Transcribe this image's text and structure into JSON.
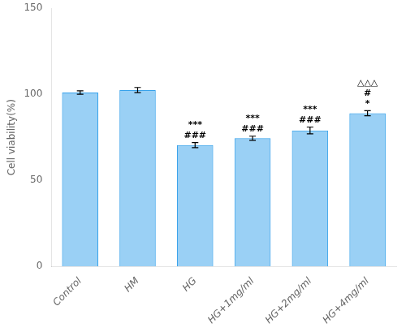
{
  "chart_data": {
    "type": "bar",
    "categories": [
      "Control",
      "HM",
      "HG",
      "HG+1mg/ml",
      "HG+2mg/ml",
      "HG+4mg/ml"
    ],
    "values": [
      101.0,
      102.5,
      70.5,
      74.5,
      79.0,
      89.0
    ],
    "errors": [
      1.0,
      1.5,
      1.5,
      1.2,
      2.0,
      1.5
    ],
    "ylabel": "Cell viability(%)",
    "ylim": [
      0,
      150
    ],
    "yticks": [
      0,
      50,
      100,
      150
    ],
    "grid": false,
    "annotations": [
      {
        "category": "HG",
        "texts": [
          "###",
          "***"
        ]
      },
      {
        "category": "HG+1mg/ml",
        "texts": [
          "###",
          "***"
        ]
      },
      {
        "category": "HG+2mg/ml",
        "texts": [
          "###",
          "***"
        ]
      },
      {
        "category": "HG+4mg/ml",
        "texts": [
          "*",
          "#",
          "△△△"
        ]
      }
    ]
  }
}
